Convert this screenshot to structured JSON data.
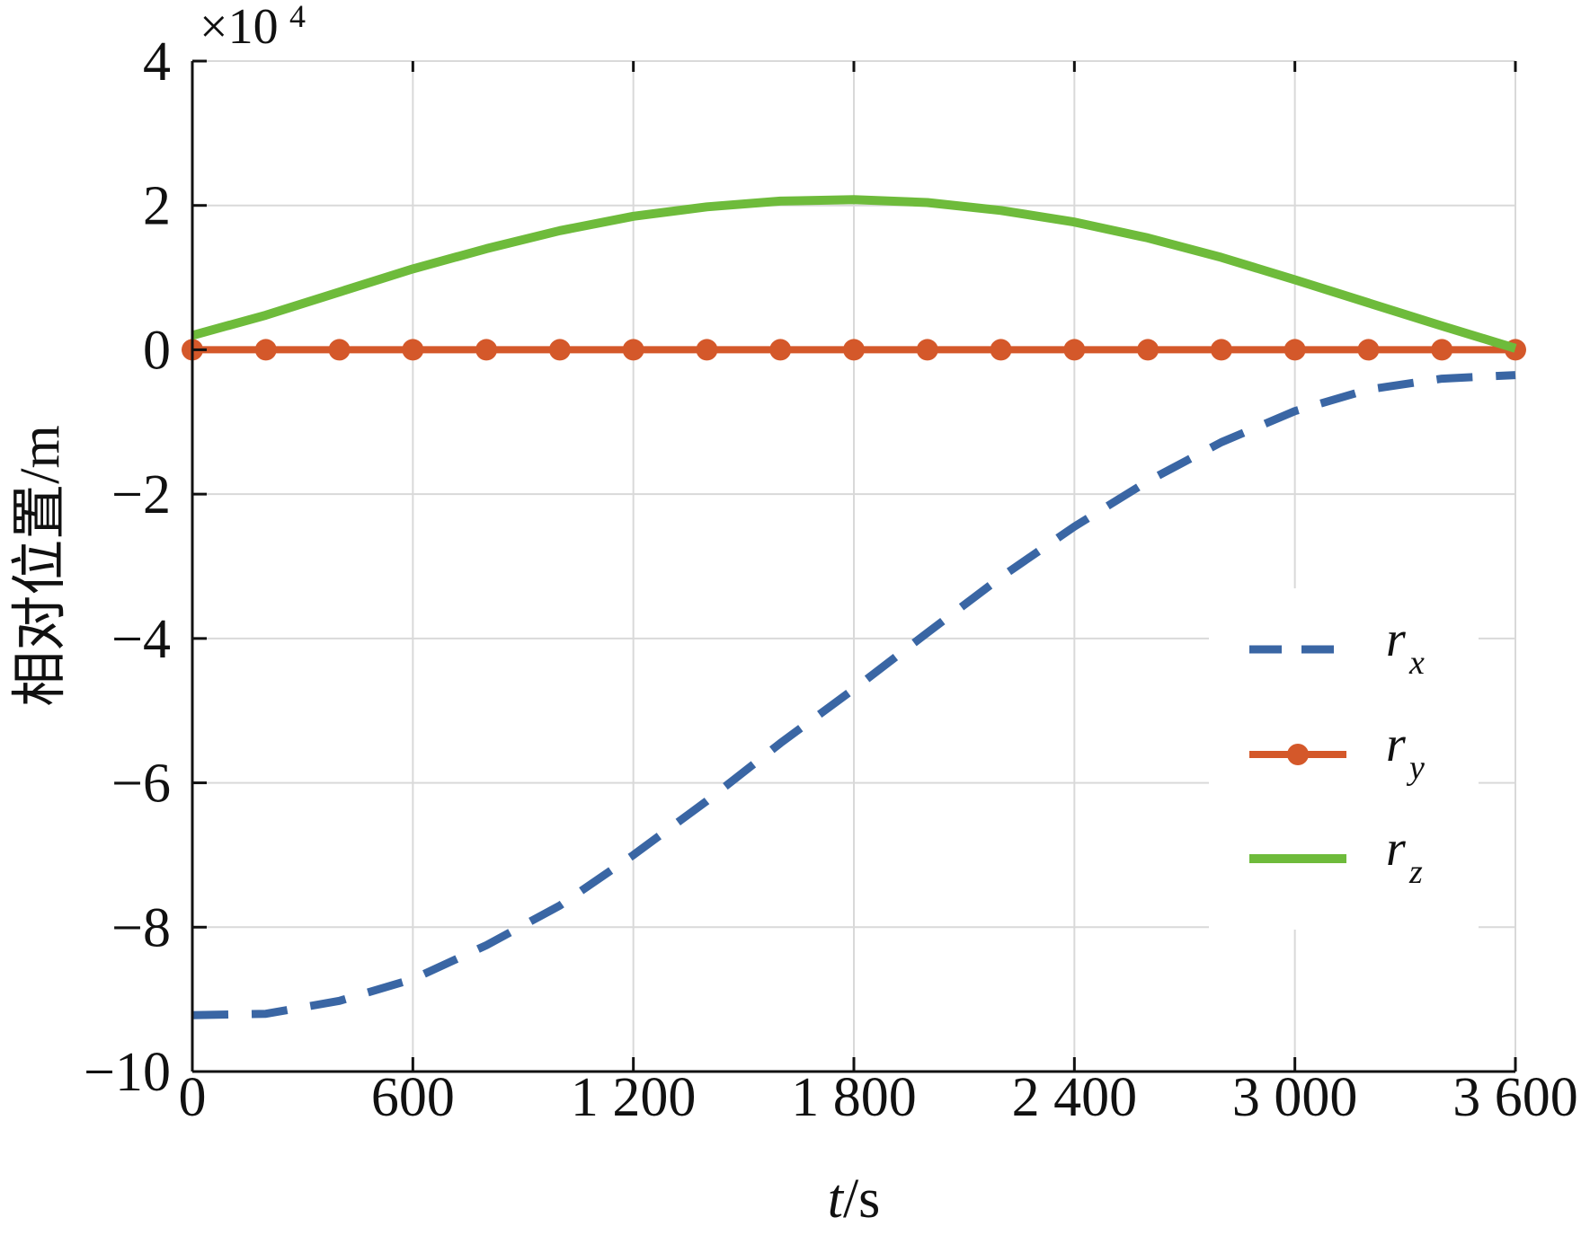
{
  "chart_data": {
    "type": "line",
    "xlabel_var": "t",
    "xlabel_unit": "/s",
    "ylabel": "相对位置/m",
    "y_multiplier_base": "×10",
    "y_multiplier_exp": "4",
    "xlim": [
      0,
      3600
    ],
    "ylim": [
      -10,
      4
    ],
    "grid": true,
    "legend_position": "right-middle",
    "x_ticks": [
      0,
      600,
      1200,
      1800,
      2400,
      3000,
      3600
    ],
    "x_tick_labels": [
      "0",
      "600",
      "1 200",
      "1 800",
      "2 400",
      "3 000",
      "3 600"
    ],
    "y_ticks": [
      4,
      2,
      0,
      -2,
      -4,
      -6,
      -8,
      -10
    ],
    "y_tick_labels": [
      "4",
      "2",
      "0",
      "−2",
      "−4",
      "−6",
      "−8",
      "−10"
    ],
    "series": [
      {
        "name": "r",
        "subscript": "x",
        "color": "#3a66a4",
        "style": "dashed",
        "x": [
          0,
          200,
          400,
          600,
          800,
          1000,
          1200,
          1400,
          1600,
          1800,
          2000,
          2200,
          2400,
          2600,
          2800,
          3000,
          3200,
          3400,
          3600
        ],
        "y": [
          -9.22,
          -9.2,
          -9.02,
          -8.72,
          -8.25,
          -7.7,
          -7.0,
          -6.25,
          -5.45,
          -4.7,
          -3.92,
          -3.15,
          -2.45,
          -1.82,
          -1.28,
          -0.85,
          -0.55,
          -0.4,
          -0.35
        ]
      },
      {
        "name": "r",
        "subscript": "y",
        "color": "#d4582a",
        "style": "solid-marker",
        "x": [
          0,
          200,
          400,
          600,
          800,
          1000,
          1200,
          1400,
          1600,
          1800,
          2000,
          2200,
          2400,
          2600,
          2800,
          3000,
          3200,
          3400,
          3600
        ],
        "y": [
          0,
          0,
          0,
          0,
          0,
          0,
          0,
          0,
          0,
          0,
          0,
          0,
          0,
          0,
          0,
          0,
          0,
          0,
          0
        ]
      },
      {
        "name": "r",
        "subscript": "z",
        "color": "#6ebb3b",
        "style": "solid",
        "x": [
          0,
          200,
          400,
          600,
          800,
          1000,
          1200,
          1400,
          1600,
          1800,
          2000,
          2200,
          2400,
          2600,
          2800,
          3000,
          3200,
          3400,
          3600
        ],
        "y": [
          0.2,
          0.48,
          0.8,
          1.12,
          1.4,
          1.65,
          1.85,
          1.98,
          2.06,
          2.08,
          2.04,
          1.93,
          1.77,
          1.55,
          1.28,
          0.97,
          0.65,
          0.33,
          0.02
        ]
      }
    ]
  }
}
